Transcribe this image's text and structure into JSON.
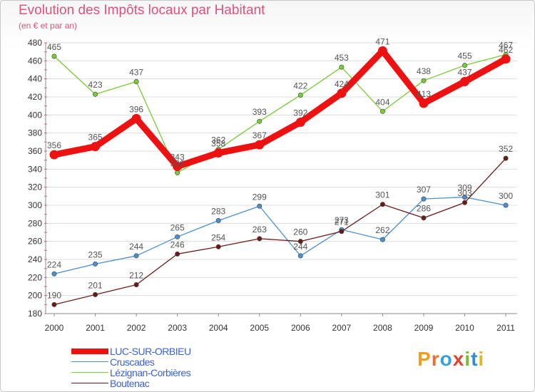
{
  "title": "Evolution des Impôts locaux par Habitant",
  "subtitle": "(en € et par an)",
  "logo_text": "Proxiti",
  "chart_data": {
    "type": "line",
    "title": "Evolution des Impôts locaux par Habitant",
    "subtitle": "(en € et par an)",
    "xlabel": "",
    "ylabel": "",
    "x": [
      "2000",
      "2001",
      "2002",
      "2003",
      "2004",
      "2005",
      "2006",
      "2007",
      "2008",
      "2009",
      "2010",
      "2011"
    ],
    "ylim": [
      180,
      480
    ],
    "yticks": [
      180,
      200,
      220,
      240,
      260,
      280,
      300,
      320,
      340,
      360,
      380,
      400,
      420,
      440,
      460,
      480
    ],
    "grid": true,
    "legend_position": "bottom-left",
    "series": [
      {
        "name": "LUC-SUR-ORBIEU",
        "color": "#ee1111",
        "values": [
          356,
          365,
          396,
          343,
          358,
          367,
          392,
          424,
          471,
          413,
          437,
          462
        ]
      },
      {
        "name": "Cruscades",
        "color": "#4a90d0",
        "values": [
          224,
          235,
          244,
          265,
          283,
          299,
          244,
          273,
          262,
          307,
          309,
          300
        ]
      },
      {
        "name": "Lézignan-Corbières",
        "color": "#77cc33",
        "values": [
          465,
          423,
          437,
          336,
          362,
          393,
          422,
          453,
          404,
          438,
          455,
          467
        ]
      },
      {
        "name": "Boutenac",
        "color": "#6b1a1a",
        "values": [
          190,
          201,
          212,
          246,
          254,
          263,
          260,
          271,
          301,
          286,
          303,
          352
        ]
      }
    ]
  }
}
